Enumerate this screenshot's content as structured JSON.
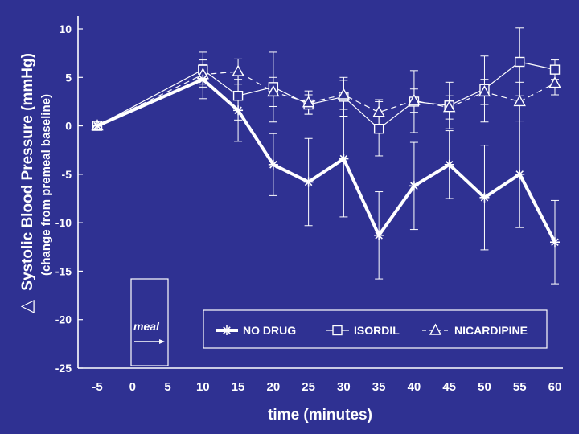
{
  "chart_data": {
    "type": "line",
    "xlabel": "time (minutes)",
    "ylabel": "Systolic Blood Pressure (mmHg)",
    "ylabel_sub": "(change from premeal baseline)",
    "ylabel_symbol": "△",
    "xlim": [
      -5,
      60
    ],
    "ylim": [
      -25,
      10
    ],
    "x_tick_labels": [
      "-5",
      "0",
      "5",
      "10",
      "15",
      "20",
      "25",
      "30",
      "35",
      "40",
      "45",
      "50",
      "55",
      "60"
    ],
    "y_tick_labels": [
      "10",
      "5",
      "0",
      "-5",
      "-10",
      "-15",
      "-20",
      "-25"
    ],
    "meal_label": "meal",
    "meal_interval": [
      0,
      5
    ],
    "legend_position": "bottom",
    "grid": false,
    "series": [
      {
        "name": "NO DRUG",
        "marker": "asterisk",
        "line": "solid-thick",
        "color": "#ffffff",
        "points": [
          {
            "x": -5,
            "y": 0.0
          },
          {
            "x": 10,
            "y": 4.8,
            "err": 2.0
          },
          {
            "x": 15,
            "y": 1.6,
            "err": 3.2
          },
          {
            "x": 20,
            "y": -4.0,
            "err": 3.2
          },
          {
            "x": 25,
            "y": -5.8,
            "err": 4.5
          },
          {
            "x": 30,
            "y": -3.4,
            "err": 6.0
          },
          {
            "x": 35,
            "y": -11.3,
            "err": 4.5
          },
          {
            "x": 40,
            "y": -6.2,
            "err": 4.5
          },
          {
            "x": 45,
            "y": -4.0,
            "err": 3.5
          },
          {
            "x": 50,
            "y": -7.4,
            "err": 5.4
          },
          {
            "x": 55,
            "y": -5.0,
            "err": 5.5
          },
          {
            "x": 60,
            "y": -12.0,
            "err": 4.3
          }
        ]
      },
      {
        "name": "ISORDIL",
        "marker": "square",
        "line": "solid-thin",
        "color": "#ffffff",
        "points": [
          {
            "x": -5,
            "y": 0.0
          },
          {
            "x": 10,
            "y": 5.8,
            "err": 1.8
          },
          {
            "x": 15,
            "y": 3.1,
            "err": 2.5
          },
          {
            "x": 20,
            "y": 4.0,
            "err": 3.6
          },
          {
            "x": 25,
            "y": 2.2,
            "err": 1.0
          },
          {
            "x": 30,
            "y": 3.0,
            "err": 2.0
          },
          {
            "x": 35,
            "y": -0.3,
            "err": 2.8
          },
          {
            "x": 40,
            "y": 2.5,
            "err": 3.2
          },
          {
            "x": 45,
            "y": 2.1,
            "err": 2.4
          },
          {
            "x": 50,
            "y": 3.8,
            "err": 3.4
          },
          {
            "x": 55,
            "y": 6.6,
            "err": 3.5
          },
          {
            "x": 60,
            "y": 5.8,
            "err": 1.0
          }
        ]
      },
      {
        "name": "NICARDIPINE",
        "marker": "triangle",
        "line": "dashed",
        "color": "#ffffff",
        "points": [
          {
            "x": -5,
            "y": 0.0
          },
          {
            "x": 10,
            "y": 5.3,
            "err": 1.0
          },
          {
            "x": 15,
            "y": 5.6,
            "err": 1.3
          },
          {
            "x": 20,
            "y": 3.5,
            "err": 1.5
          },
          {
            "x": 25,
            "y": 2.4,
            "err": 1.2
          },
          {
            "x": 30,
            "y": 3.2,
            "err": 1.5
          },
          {
            "x": 35,
            "y": 1.4,
            "err": 1.3
          },
          {
            "x": 40,
            "y": 2.6,
            "err": 1.2
          },
          {
            "x": 45,
            "y": 1.9,
            "err": 1.2
          },
          {
            "x": 50,
            "y": 3.5,
            "err": 1.3
          },
          {
            "x": 55,
            "y": 2.5,
            "err": 2.0
          },
          {
            "x": 60,
            "y": 4.4,
            "err": 1.2
          }
        ]
      }
    ]
  }
}
